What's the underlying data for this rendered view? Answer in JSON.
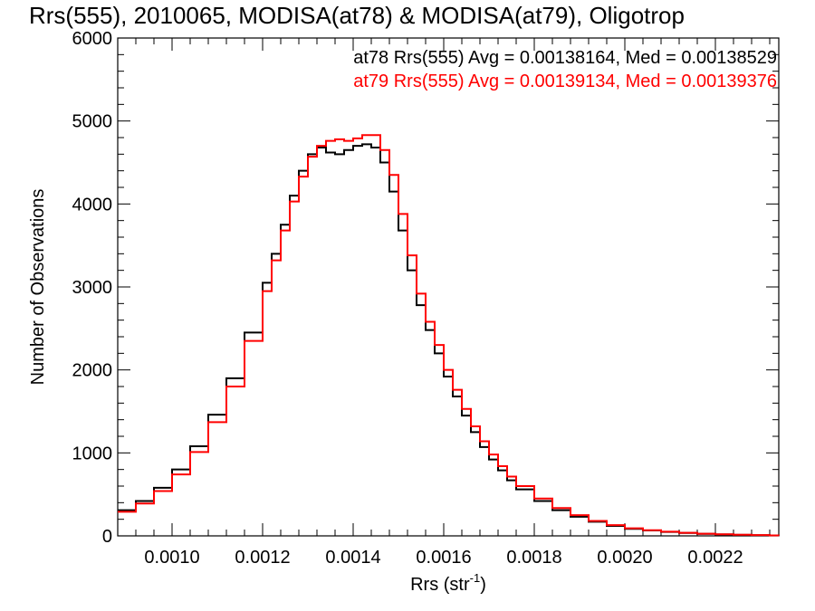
{
  "chart_data": {
    "type": "line",
    "title": "Rrs(555), 2010065, MODISA(at78) & MODISA(at79), Oligotrop",
    "xlabel": "Rrs (str",
    "xlabel_sup": "-1",
    "xlabel_close": ")",
    "ylabel": "Number of Observations",
    "xlim": [
      0.00088,
      0.00234
    ],
    "ylim": [
      0,
      6000
    ],
    "x_ticks": [
      {
        "value": 0.001,
        "label": "0.0010"
      },
      {
        "value": 0.0012,
        "label": "0.0012"
      },
      {
        "value": 0.0014,
        "label": "0.0014"
      },
      {
        "value": 0.0016,
        "label": "0.0016"
      },
      {
        "value": 0.0018,
        "label": "0.0018"
      },
      {
        "value": 0.002,
        "label": "0.0020"
      },
      {
        "value": 0.0022,
        "label": "0.0022"
      }
    ],
    "y_ticks": [
      {
        "value": 0,
        "label": "0"
      },
      {
        "value": 1000,
        "label": "1000"
      },
      {
        "value": 2000,
        "label": "2000"
      },
      {
        "value": 3000,
        "label": "3000"
      },
      {
        "value": 4000,
        "label": "4000"
      },
      {
        "value": 5000,
        "label": "5000"
      },
      {
        "value": 6000,
        "label": "6000"
      }
    ],
    "grid": false,
    "annotations": [
      {
        "text": "at78 Rrs(555) Avg = 0.00138164, Med = 0.00138529",
        "color": "#000000"
      },
      {
        "text": "at79 Rrs(555) Avg = 0.00139134, Med = 0.00139376",
        "color": "#ff0000"
      }
    ],
    "series": [
      {
        "color": "#000000",
        "style": "step",
        "x": [
          0.00088,
          0.00092,
          0.00096,
          0.001,
          0.00104,
          0.00108,
          0.00112,
          0.00116,
          0.0012,
          0.00122,
          0.00124,
          0.00126,
          0.00128,
          0.0013,
          0.00132,
          0.00134,
          0.00136,
          0.00138,
          0.0014,
          0.00142,
          0.00144,
          0.00146,
          0.00148,
          0.0015,
          0.00152,
          0.00154,
          0.00156,
          0.00158,
          0.0016,
          0.00162,
          0.00164,
          0.00166,
          0.00168,
          0.0017,
          0.00172,
          0.00174,
          0.00176,
          0.0018,
          0.00184,
          0.00188,
          0.00192,
          0.00196,
          0.002,
          0.00204,
          0.00208,
          0.00212,
          0.00216,
          0.0022,
          0.00224,
          0.00228,
          0.00232,
          0.00234
        ],
        "y": [
          310,
          420,
          580,
          800,
          1080,
          1460,
          1900,
          2450,
          3050,
          3400,
          3750,
          4100,
          4400,
          4600,
          4680,
          4620,
          4600,
          4650,
          4700,
          4720,
          4680,
          4500,
          4150,
          3680,
          3200,
          2780,
          2480,
          2200,
          1920,
          1680,
          1450,
          1250,
          1070,
          920,
          790,
          670,
          560,
          420,
          310,
          230,
          170,
          120,
          85,
          65,
          48,
          35,
          25,
          18,
          12,
          8,
          5,
          4
        ]
      },
      {
        "color": "#ff0000",
        "style": "step",
        "x": [
          0.00088,
          0.00092,
          0.00096,
          0.001,
          0.00104,
          0.00108,
          0.00112,
          0.00116,
          0.0012,
          0.00122,
          0.00124,
          0.00126,
          0.00128,
          0.0013,
          0.00132,
          0.00134,
          0.00136,
          0.00138,
          0.0014,
          0.00142,
          0.00144,
          0.00146,
          0.00148,
          0.0015,
          0.00152,
          0.00154,
          0.00156,
          0.00158,
          0.0016,
          0.00162,
          0.00164,
          0.00166,
          0.00168,
          0.0017,
          0.00172,
          0.00174,
          0.00176,
          0.0018,
          0.00184,
          0.00188,
          0.00192,
          0.00196,
          0.002,
          0.00204,
          0.00208,
          0.00212,
          0.00216,
          0.0022,
          0.00224,
          0.00228,
          0.00232,
          0.00234
        ],
        "y": [
          290,
          390,
          540,
          740,
          1010,
          1370,
          1800,
          2350,
          2950,
          3320,
          3680,
          4030,
          4330,
          4570,
          4700,
          4760,
          4780,
          4760,
          4790,
          4830,
          4830,
          4650,
          4350,
          3880,
          3380,
          2920,
          2580,
          2300,
          2000,
          1760,
          1530,
          1320,
          1140,
          980,
          840,
          715,
          600,
          450,
          335,
          250,
          180,
          130,
          92,
          68,
          50,
          37,
          26,
          19,
          13,
          9,
          6,
          4
        ]
      }
    ]
  }
}
